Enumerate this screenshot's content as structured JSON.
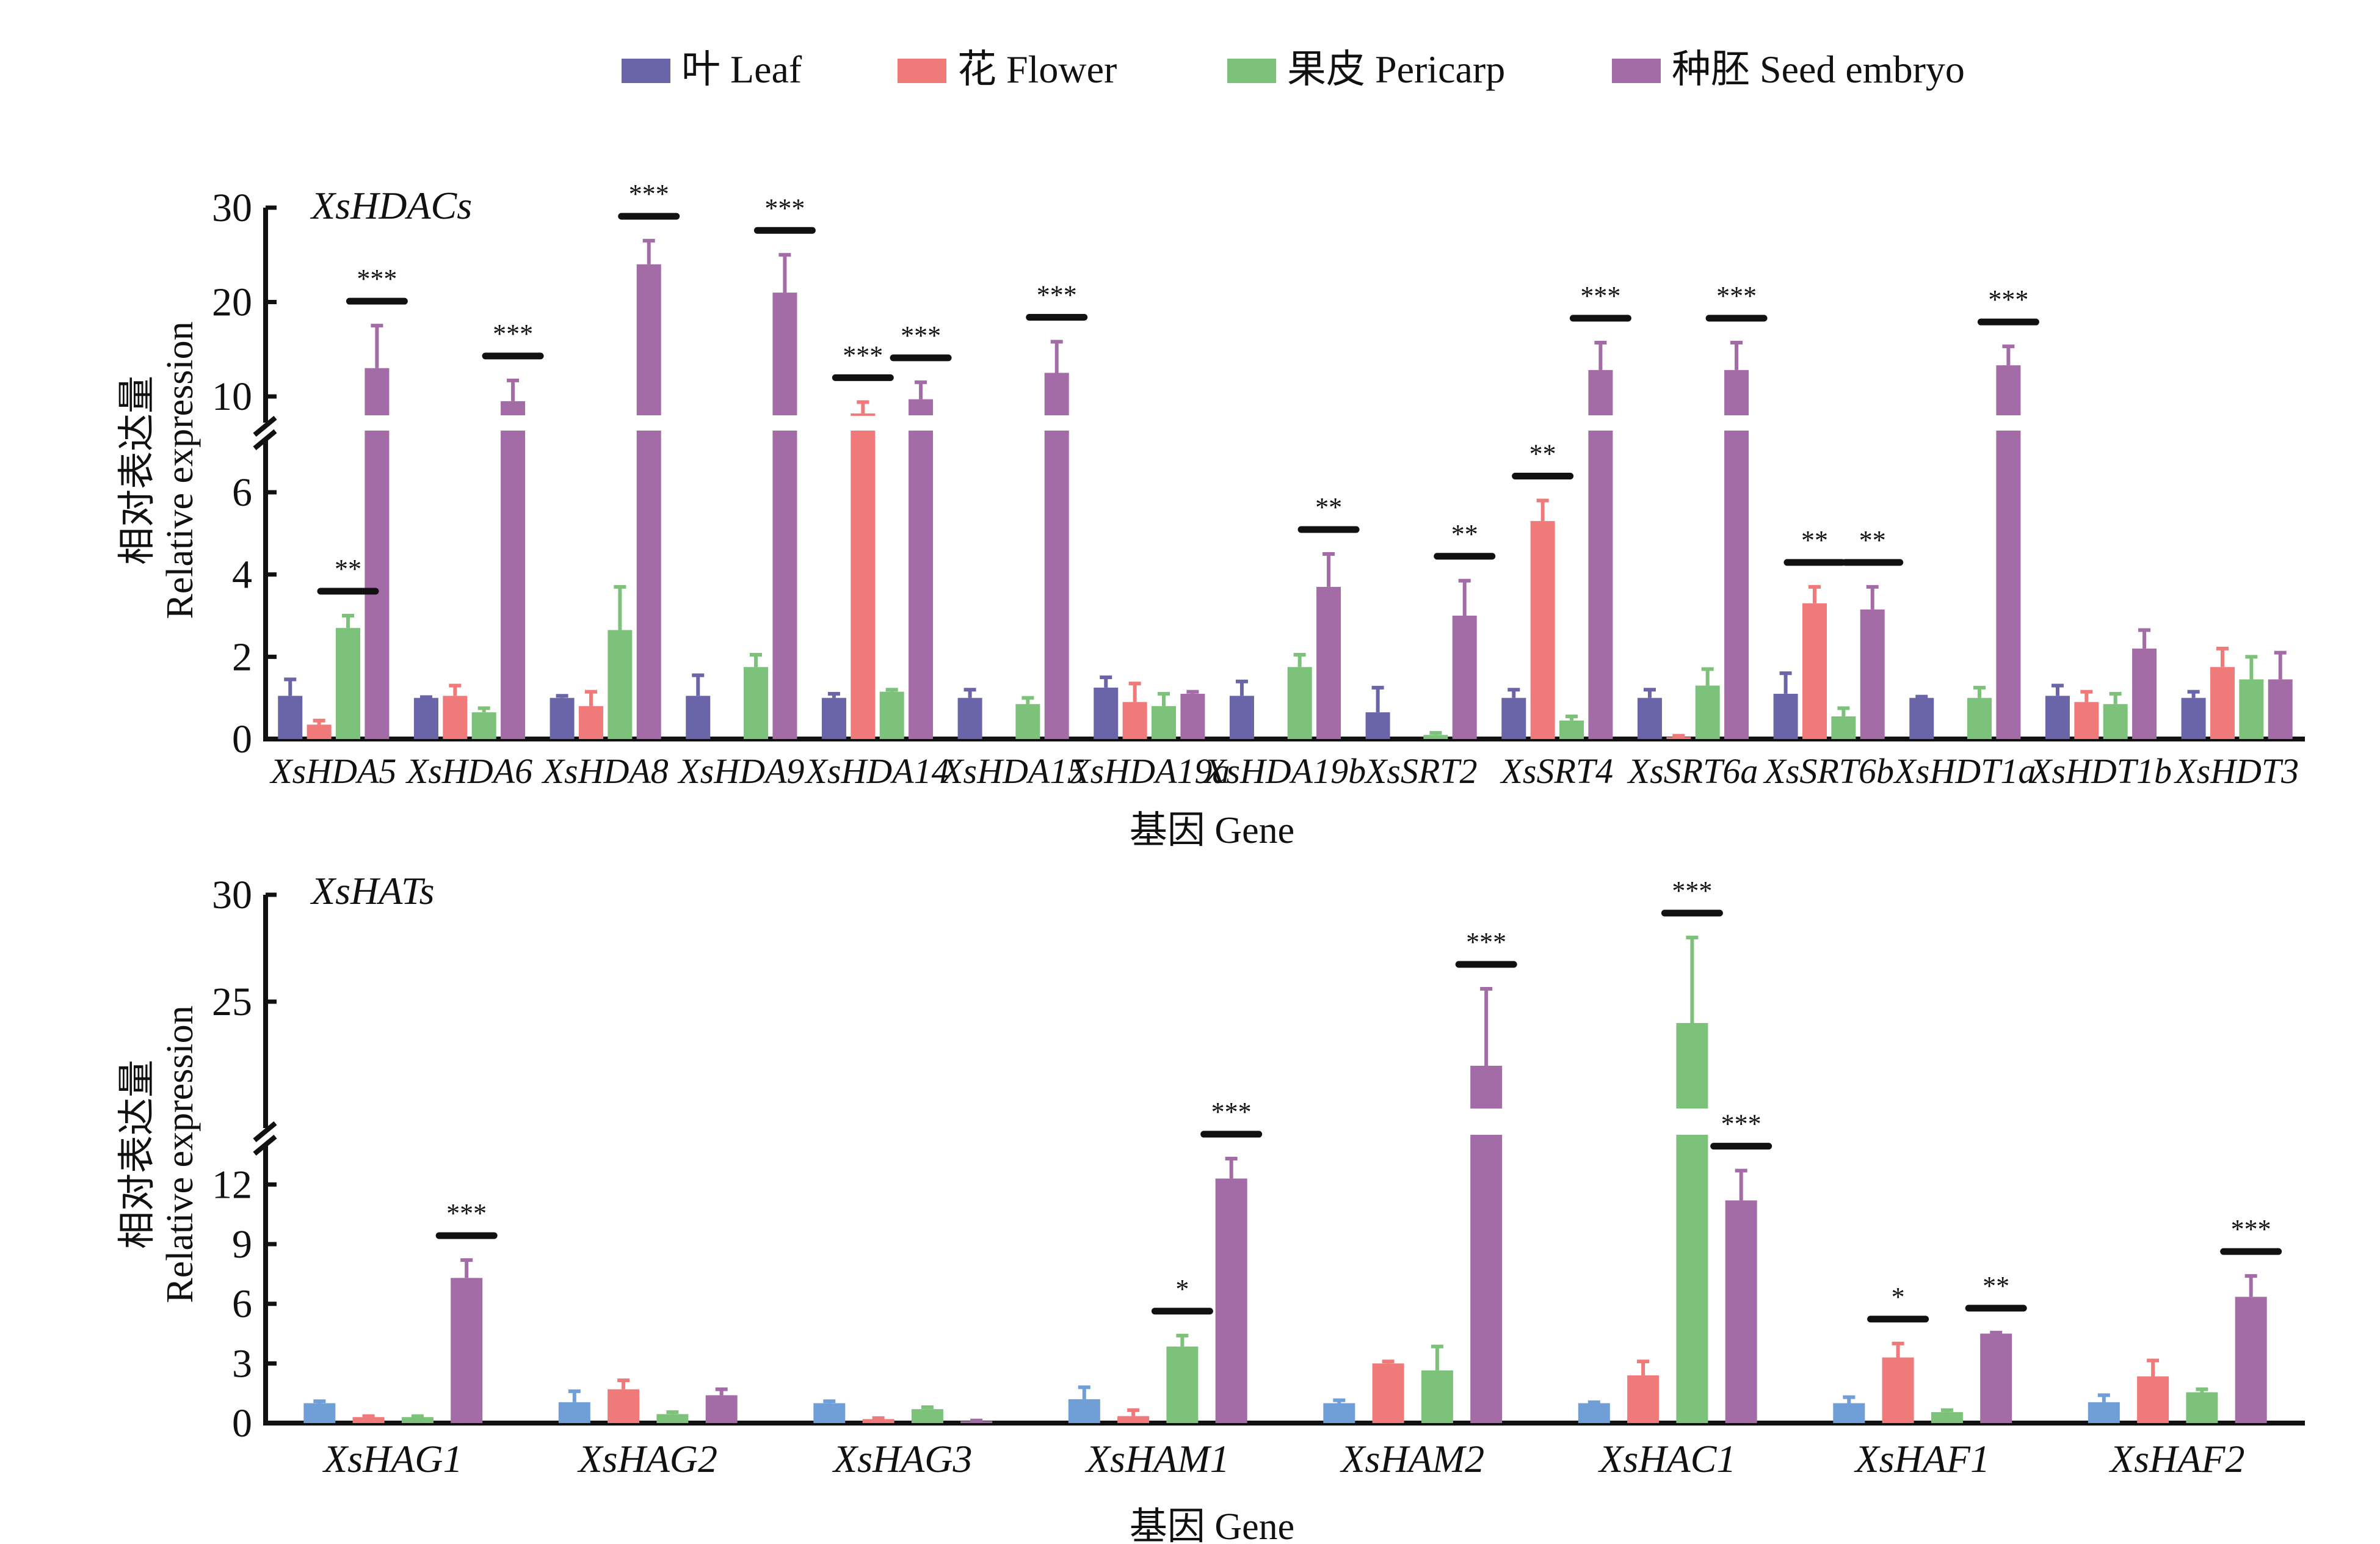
{
  "legend": [
    {
      "key": "leaf",
      "label": "叶 Leaf",
      "color": "#6a64a8"
    },
    {
      "key": "flower",
      "label": "花 Flower",
      "color": "#f07a7a"
    },
    {
      "key": "pericarp",
      "label": "果皮 Pericarp",
      "color": "#7cc27a"
    },
    {
      "key": "seed",
      "label": "种胚 Seed embryo",
      "color": "#a46ca6"
    }
  ],
  "chart_data": [
    {
      "type": "bar",
      "title": "XsHDACs",
      "xlabel": "基因 Gene",
      "ylabel_cn": "相对表达量",
      "ylabel": "Relative expression",
      "y_axis_break": true,
      "y_ticks_lower": [
        0,
        2,
        4,
        6
      ],
      "y_ticks_upper": [
        10,
        20,
        30
      ],
      "ylim": [
        0,
        30
      ],
      "leaf_color": "#6a64a8",
      "categories": [
        "XsHDA5",
        "XsHDA6",
        "XsHDA8",
        "XsHDA9",
        "XsHDA14",
        "XsHDA15",
        "XsHDA19a",
        "XsHDA19b",
        "XsSRT2",
        "XsSRT4",
        "XsSRT6a",
        "XsSRT6b",
        "XsHDT1a",
        "XsHDT1b",
        "XsHDT3"
      ],
      "series": [
        {
          "name": "叶 Leaf",
          "values": [
            1.05,
            1.0,
            1.0,
            1.05,
            1.0,
            1.0,
            1.25,
            1.05,
            0.65,
            1.0,
            1.0,
            1.1,
            1.0,
            1.05,
            1.0
          ],
          "errors": [
            0.4,
            0.02,
            0.05,
            0.5,
            0.1,
            0.2,
            0.25,
            0.35,
            0.6,
            0.2,
            0.2,
            0.5,
            0.03,
            0.25,
            0.15
          ]
        },
        {
          "name": "花 Flower",
          "values": [
            0.35,
            1.05,
            0.8,
            0,
            8.2,
            0,
            0.9,
            0,
            0,
            5.3,
            0.05,
            3.3,
            0,
            0.9,
            1.75
          ],
          "errors": [
            0.1,
            0.25,
            0.35,
            0,
            1.2,
            0,
            0.45,
            0,
            0,
            0.5,
            0.03,
            0.4,
            0,
            0.25,
            0.45
          ]
        },
        {
          "name": "果皮 Pericarp",
          "values": [
            2.7,
            0.65,
            2.65,
            1.75,
            1.15,
            0.85,
            0.8,
            1.75,
            0.1,
            0.45,
            1.3,
            0.55,
            1.0,
            0.85,
            1.45
          ],
          "errors": [
            0.3,
            0.1,
            1.05,
            0.3,
            0.05,
            0.15,
            0.3,
            0.3,
            0.05,
            0.1,
            0.4,
            0.2,
            0.25,
            0.25,
            0.55
          ]
        },
        {
          "name": "种胚 Seed embryo",
          "values": [
            13.0,
            9.5,
            24.0,
            21.0,
            9.7,
            12.5,
            1.1,
            3.7,
            3.0,
            12.8,
            12.8,
            3.15,
            13.3,
            2.2,
            1.45
          ],
          "errors": [
            4.5,
            2.2,
            2.5,
            4.0,
            1.8,
            3.3,
            0.05,
            0.8,
            0.85,
            2.9,
            2.9,
            0.55,
            2.0,
            0.45,
            0.65
          ]
        }
      ],
      "significance": [
        {
          "category": "XsHDA5",
          "series": "果皮 Pericarp",
          "label": "**"
        },
        {
          "category": "XsHDA5",
          "series": "种胚 Seed embryo",
          "label": "***"
        },
        {
          "category": "XsHDA6",
          "series": "种胚 Seed embryo",
          "label": "***"
        },
        {
          "category": "XsHDA8",
          "series": "种胚 Seed embryo",
          "label": "***"
        },
        {
          "category": "XsHDA9",
          "series": "种胚 Seed embryo",
          "label": "***"
        },
        {
          "category": "XsHDA14",
          "series": "花 Flower",
          "label": "***"
        },
        {
          "category": "XsHDA14",
          "series": "种胚 Seed embryo",
          "label": "***"
        },
        {
          "category": "XsHDA15",
          "series": "种胚 Seed embryo",
          "label": "***"
        },
        {
          "category": "XsHDA19b",
          "series": "种胚 Seed embryo",
          "label": "**"
        },
        {
          "category": "XsSRT2",
          "series": "种胚 Seed embryo",
          "label": "**"
        },
        {
          "category": "XsSRT4",
          "series": "花 Flower",
          "label": "**"
        },
        {
          "category": "XsSRT4",
          "series": "种胚 Seed embryo",
          "label": "***"
        },
        {
          "category": "XsSRT6a",
          "series": "种胚 Seed embryo",
          "label": "***"
        },
        {
          "category": "XsSRT6b",
          "series": "花 Flower",
          "label": "**"
        },
        {
          "category": "XsSRT6b",
          "series": "种胚 Seed embryo",
          "label": "**"
        },
        {
          "category": "XsHDT1a",
          "series": "种胚 Seed embryo",
          "label": "***"
        }
      ]
    },
    {
      "type": "bar",
      "title": "XsHATs",
      "xlabel": "基因 Gene",
      "ylabel_cn": "相对表达量",
      "ylabel": "Relative expression",
      "y_axis_break": true,
      "y_ticks_lower": [
        0,
        3,
        6,
        9,
        12
      ],
      "y_ticks_upper": [
        25,
        30
      ],
      "ylim": [
        0,
        30
      ],
      "leaf_color": "#6f9fd6",
      "categories": [
        "XsHAG1",
        "XsHAG2",
        "XsHAG3",
        "XsHAM1",
        "XsHAM2",
        "XsHAC1",
        "XsHAF1",
        "XsHAF2"
      ],
      "series": [
        {
          "name": "叶 Leaf",
          "values": [
            1.0,
            1.05,
            1.0,
            1.2,
            1.0,
            1.0,
            1.0,
            1.05
          ],
          "errors": [
            0.1,
            0.55,
            0.1,
            0.6,
            0.15,
            0.05,
            0.3,
            0.35
          ]
        },
        {
          "name": "花 Flower",
          "values": [
            0.3,
            1.7,
            0.2,
            0.35,
            3.0,
            2.4,
            3.3,
            2.35
          ],
          "errors": [
            0.05,
            0.45,
            0.05,
            0.3,
            0.1,
            0.7,
            0.7,
            0.8
          ]
        },
        {
          "name": "果皮 Pericarp",
          "values": [
            0.3,
            0.45,
            0.7,
            3.85,
            2.65,
            24.0,
            0.55,
            1.55
          ],
          "errors": [
            0.05,
            0.1,
            0.1,
            0.55,
            1.2,
            4.0,
            0.1,
            0.15
          ]
        },
        {
          "name": "种胚 Seed embryo",
          "values": [
            7.3,
            1.4,
            0.1,
            12.3,
            22.0,
            11.2,
            4.5,
            6.35
          ],
          "errors": [
            0.9,
            0.3,
            0.03,
            1.0,
            3.6,
            1.5,
            0.05,
            1.05
          ]
        }
      ],
      "significance": [
        {
          "category": "XsHAG1",
          "series": "种胚 Seed embryo",
          "label": "***"
        },
        {
          "category": "XsHAM1",
          "series": "果皮 Pericarp",
          "label": "*"
        },
        {
          "category": "XsHAM1",
          "series": "种胚 Seed embryo",
          "label": "***"
        },
        {
          "category": "XsHAM2",
          "series": "种胚 Seed embryo",
          "label": "***"
        },
        {
          "category": "XsHAC1",
          "series": "果皮 Pericarp",
          "label": "***"
        },
        {
          "category": "XsHAC1",
          "series": "种胚 Seed embryo",
          "label": "***"
        },
        {
          "category": "XsHAF1",
          "series": "花 Flower",
          "label": "*"
        },
        {
          "category": "XsHAF1",
          "series": "种胚 Seed embryo",
          "label": "**"
        },
        {
          "category": "XsHAF2",
          "series": "种胚 Seed embryo",
          "label": "***"
        }
      ]
    }
  ]
}
